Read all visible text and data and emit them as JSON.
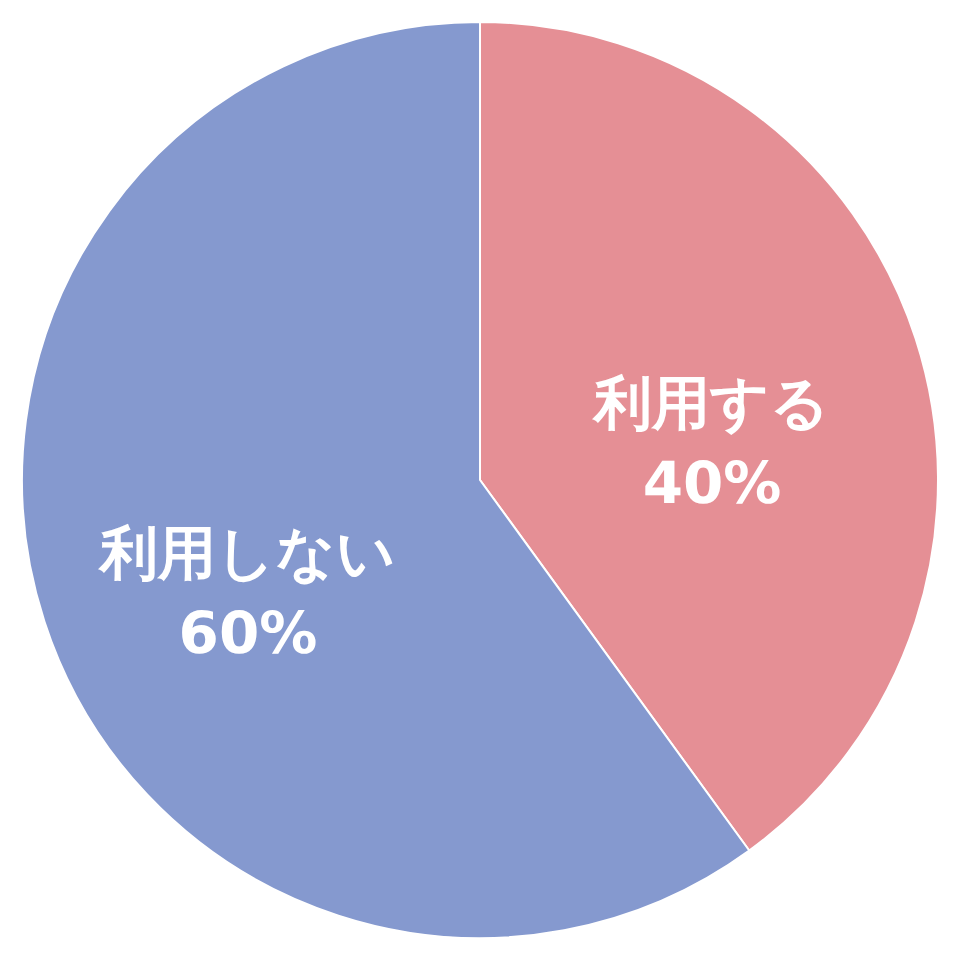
{
  "chart_data": {
    "type": "pie",
    "categories": [
      "利用する",
      "利用しない"
    ],
    "values": [
      40,
      60
    ],
    "colors": [
      "#e58f95",
      "#8599cf"
    ],
    "value_labels": [
      "40%",
      "60%"
    ]
  }
}
